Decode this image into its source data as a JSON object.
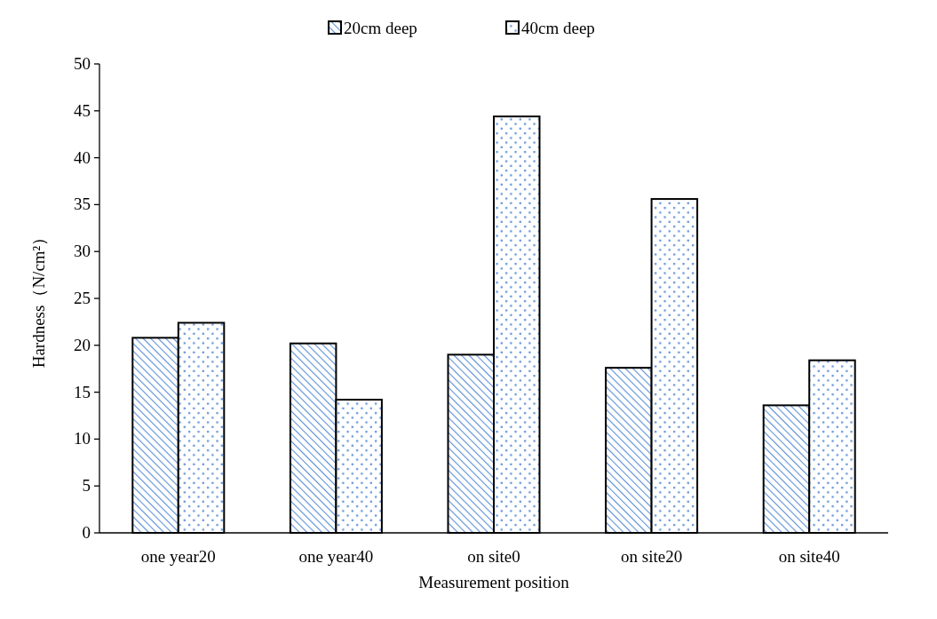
{
  "chart_data": {
    "type": "bar",
    "xlabel": "Measurement position",
    "ylabel": "Hardness（N/cm²）",
    "categories": [
      "one year20",
      "one year40",
      "on site0",
      "on site20",
      "on site40"
    ],
    "series": [
      {
        "name": "20cm deep",
        "color": "#5b8fd6",
        "values": [
          20.8,
          20.2,
          19.0,
          17.6,
          13.6
        ]
      },
      {
        "name": "40cm deep",
        "color": "#5b8fd6",
        "values": [
          22.4,
          14.2,
          44.4,
          35.6,
          18.4
        ]
      }
    ],
    "ylim": [
      0,
      50
    ],
    "yticks": [
      0,
      5,
      10,
      15,
      20,
      25,
      30,
      35,
      40,
      45,
      50
    ],
    "grid": false,
    "legend": "top"
  }
}
